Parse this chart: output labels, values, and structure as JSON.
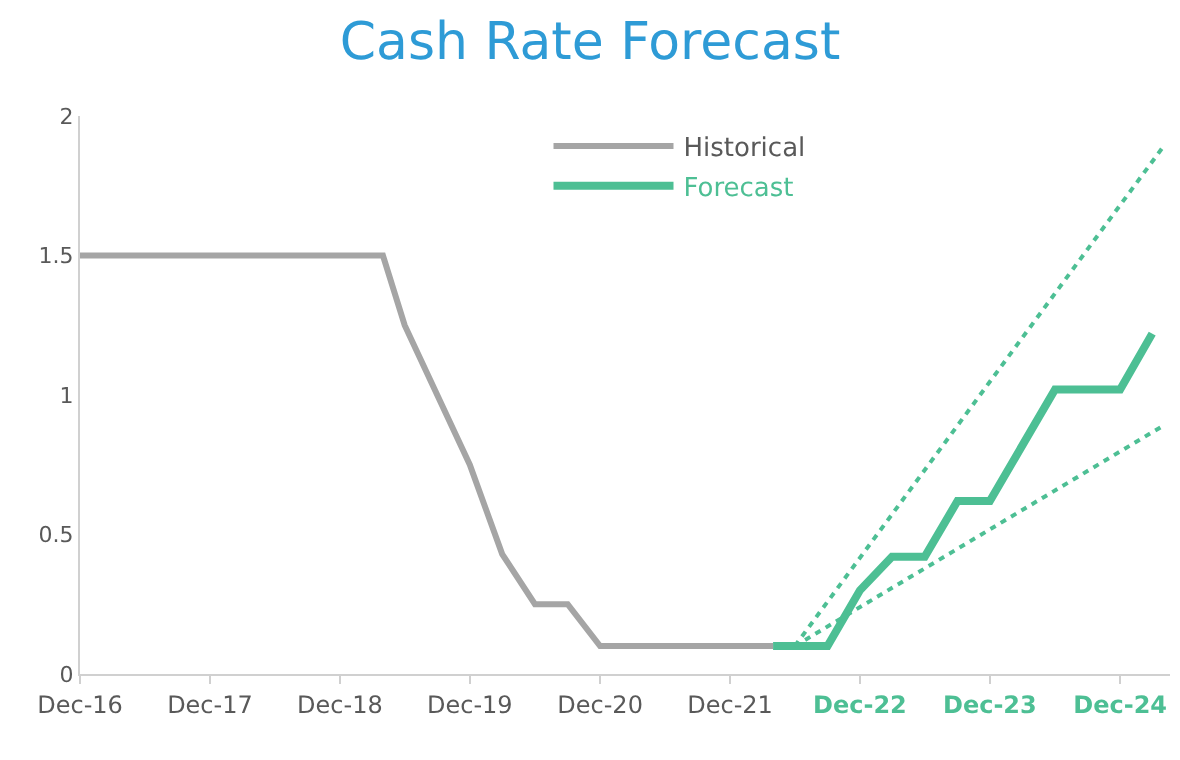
{
  "chart_data": {
    "type": "line",
    "title": "Cash Rate Forecast",
    "series": [
      {
        "name": "Historical",
        "color": "#a5a5a5",
        "line_style": "solid",
        "x": [
          "2016-12",
          "2019-04",
          "2019-06",
          "2019-12",
          "2020-03",
          "2020-06",
          "2020-09",
          "2020-12",
          "2022-04"
        ],
        "values": [
          1.5,
          1.5,
          1.25,
          0.75,
          0.43,
          0.25,
          0.25,
          0.1,
          0.1
        ]
      },
      {
        "name": "Forecast",
        "color": "#4dbf94",
        "line_style": "solid",
        "x": [
          "2022-04",
          "2022-09",
          "2022-12",
          "2023-03",
          "2023-06",
          "2023-09",
          "2023-12",
          "2024-06",
          "2024-12",
          "2025-03"
        ],
        "values": [
          0.1,
          0.1,
          0.3,
          0.42,
          0.42,
          0.62,
          0.62,
          1.02,
          1.02,
          1.22
        ]
      },
      {
        "color": "#4dbf94",
        "line_style": "dotted",
        "x": [
          "2022-06",
          "2025-04"
        ],
        "values": [
          0.1,
          1.89
        ]
      },
      {
        "color": "#4dbf94",
        "line_style": "dotted",
        "x": [
          "2022-06",
          "2025-04"
        ],
        "values": [
          0.1,
          0.89
        ]
      }
    ],
    "xlim": [
      "2016-12-01",
      "2025-04-20"
    ],
    "xticks": [
      {
        "value": "2016-12",
        "label": "Dec-16"
      },
      {
        "value": "2017-12",
        "label": "Dec-17"
      },
      {
        "value": "2018-12",
        "label": "Dec-18"
      },
      {
        "value": "2019-12",
        "label": "Dec-19"
      },
      {
        "value": "2020-12",
        "label": "Dec-20"
      },
      {
        "value": "2021-12",
        "label": "Dec-21"
      },
      {
        "value": "2022-12",
        "label": "Dec-22"
      },
      {
        "value": "2023-12",
        "label": "Dec-23"
      },
      {
        "value": "2024-12",
        "label": "Dec-24"
      }
    ],
    "ylim": [
      0,
      2
    ],
    "yticks": [
      0,
      0.5,
      1,
      1.5,
      2
    ],
    "grid": false,
    "legend": "top",
    "marker": "none"
  }
}
